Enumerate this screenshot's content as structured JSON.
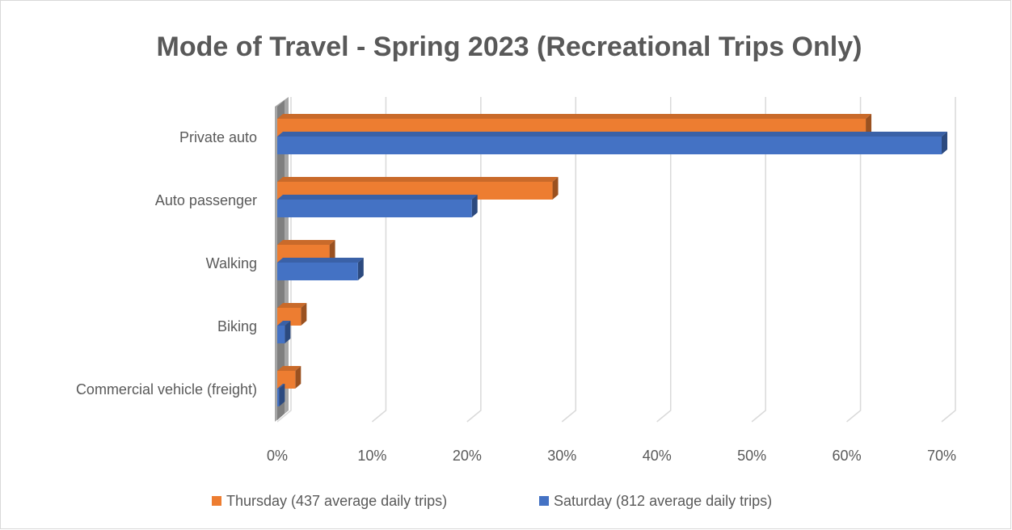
{
  "chart_data": {
    "type": "bar",
    "orientation": "horizontal",
    "title": "Mode of Travel - Spring 2023 (Recreational Trips Only)",
    "categories": [
      "Private auto",
      "Auto passenger",
      "Walking",
      "Biking",
      "Commercial vehicle (freight)"
    ],
    "series": [
      {
        "name": "Thursday (437 average daily trips)",
        "color": "#ed7d31",
        "values": [
          62,
          29,
          5.5,
          2.5,
          1.9
        ]
      },
      {
        "name": "Saturday (812 average daily trips)",
        "color": "#4472c4",
        "values": [
          70,
          20.5,
          8.5,
          0.8,
          0.2
        ]
      }
    ],
    "xlim": [
      0,
      70
    ],
    "xticks": [
      {
        "value": 0,
        "label": "0%"
      },
      {
        "value": 10,
        "label": "10%"
      },
      {
        "value": 20,
        "label": "20%"
      },
      {
        "value": 30,
        "label": "30%"
      },
      {
        "value": 40,
        "label": "40%"
      },
      {
        "value": 50,
        "label": "50%"
      },
      {
        "value": 60,
        "label": "60%"
      },
      {
        "value": 70,
        "label": "70%"
      }
    ],
    "grid": true,
    "legend": "bottom"
  }
}
